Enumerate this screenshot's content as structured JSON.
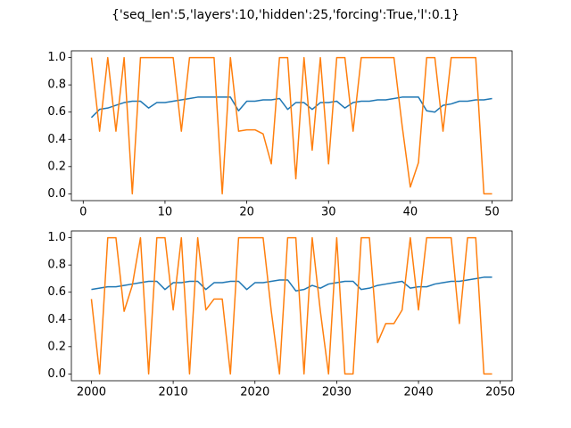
{
  "title": "{'seq_len':5,'layers':10,'hidden':25,'forcing':True,'l':0.1}",
  "chart_data": [
    {
      "type": "line",
      "x": [
        1,
        2,
        3,
        4,
        5,
        6,
        7,
        8,
        9,
        10,
        11,
        12,
        13,
        14,
        15,
        16,
        17,
        18,
        19,
        20,
        21,
        22,
        23,
        24,
        25,
        26,
        27,
        28,
        29,
        30,
        31,
        32,
        33,
        34,
        35,
        36,
        37,
        38,
        39,
        40,
        41,
        42,
        43,
        44,
        45,
        46,
        47,
        48,
        49,
        50
      ],
      "series": [
        {
          "color": "#1f77b4",
          "values": [
            0.56,
            0.62,
            0.63,
            0.65,
            0.67,
            0.68,
            0.68,
            0.63,
            0.67,
            0.67,
            0.68,
            0.69,
            0.7,
            0.71,
            0.71,
            0.71,
            0.71,
            0.71,
            0.61,
            0.68,
            0.68,
            0.69,
            0.69,
            0.7,
            0.62,
            0.67,
            0.67,
            0.62,
            0.67,
            0.67,
            0.68,
            0.63,
            0.67,
            0.68,
            0.68,
            0.69,
            0.69,
            0.7,
            0.71,
            0.71,
            0.71,
            0.61,
            0.6,
            0.65,
            0.66,
            0.68,
            0.68,
            0.69,
            0.69,
            0.7
          ]
        },
        {
          "color": "#ff7f0e",
          "values": [
            1.0,
            0.46,
            1.0,
            0.46,
            1.0,
            0.0,
            1.0,
            1.0,
            1.0,
            1.0,
            1.0,
            0.46,
            1.0,
            1.0,
            1.0,
            1.0,
            0.0,
            1.0,
            0.46,
            0.47,
            0.47,
            0.44,
            0.22,
            1.0,
            1.0,
            0.11,
            1.0,
            0.32,
            1.0,
            0.22,
            1.0,
            1.0,
            0.46,
            1.0,
            1.0,
            1.0,
            1.0,
            1.0,
            0.5,
            0.05,
            0.23,
            1.0,
            1.0,
            0.46,
            1.0,
            1.0,
            1.0,
            1.0,
            0.0,
            0.0
          ]
        }
      ],
      "xlim": [
        -1.45,
        52.45
      ],
      "xticks": [
        0,
        10,
        20,
        30,
        40,
        50
      ],
      "ylim": [
        -0.05,
        1.05
      ],
      "yticks": [
        {
          "value": 0,
          "label": "0.0"
        },
        0.2,
        0.4,
        0.6,
        0.8,
        {
          "value": 1,
          "label": "1.0"
        }
      ]
    },
    {
      "type": "line",
      "x": [
        2000,
        2001,
        2002,
        2003,
        2004,
        2005,
        2006,
        2007,
        2008,
        2009,
        2010,
        2011,
        2012,
        2013,
        2014,
        2015,
        2016,
        2017,
        2018,
        2019,
        2020,
        2021,
        2022,
        2023,
        2024,
        2025,
        2026,
        2027,
        2028,
        2029,
        2030,
        2031,
        2032,
        2033,
        2034,
        2035,
        2036,
        2037,
        2038,
        2039,
        2040,
        2041,
        2042,
        2043,
        2044,
        2045,
        2046,
        2047,
        2048,
        2049
      ],
      "series": [
        {
          "color": "#1f77b4",
          "values": [
            0.62,
            0.63,
            0.64,
            0.64,
            0.65,
            0.66,
            0.67,
            0.68,
            0.68,
            0.62,
            0.67,
            0.67,
            0.68,
            0.68,
            0.62,
            0.67,
            0.67,
            0.68,
            0.68,
            0.62,
            0.67,
            0.67,
            0.68,
            0.69,
            0.69,
            0.61,
            0.62,
            0.65,
            0.63,
            0.66,
            0.67,
            0.68,
            0.68,
            0.62,
            0.63,
            0.65,
            0.66,
            0.67,
            0.68,
            0.63,
            0.64,
            0.64,
            0.66,
            0.67,
            0.68,
            0.68,
            0.69,
            0.7,
            0.71,
            0.71
          ]
        },
        {
          "color": "#ff7f0e",
          "values": [
            0.55,
            0.0,
            1.0,
            1.0,
            0.46,
            0.65,
            1.0,
            0.0,
            1.0,
            1.0,
            0.47,
            1.0,
            0.0,
            1.0,
            0.47,
            0.55,
            0.55,
            0.0,
            1.0,
            1.0,
            1.0,
            1.0,
            0.46,
            0.0,
            1.0,
            1.0,
            0.0,
            1.0,
            0.46,
            0.0,
            1.0,
            0.0,
            0.0,
            1.0,
            1.0,
            0.23,
            0.37,
            0.37,
            0.47,
            1.0,
            0.47,
            1.0,
            1.0,
            1.0,
            1.0,
            0.37,
            1.0,
            1.0,
            0.0,
            0.0
          ]
        }
      ],
      "xlim": [
        1997.55,
        2051.45
      ],
      "xticks": [
        2000,
        2010,
        2020,
        2030,
        2040,
        2050
      ],
      "ylim": [
        -0.05,
        1.05
      ],
      "yticks": [
        {
          "value": 0,
          "label": "0.0"
        },
        0.2,
        0.4,
        0.6,
        0.8,
        {
          "value": 1,
          "label": "1.0"
        }
      ]
    }
  ]
}
